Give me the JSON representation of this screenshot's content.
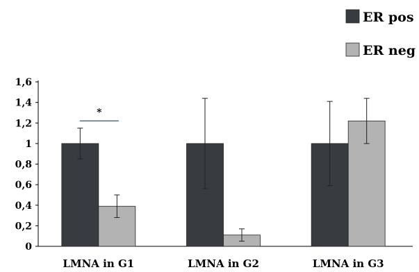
{
  "chart_data": {
    "type": "bar",
    "categories": [
      "LMNA in G1",
      "LMNA in G2",
      "LMNA in G3"
    ],
    "series": [
      {
        "name": "ER pos",
        "color": "#383c40",
        "values": [
          1.0,
          1.0,
          1.0
        ],
        "errors": [
          0.15,
          0.44,
          0.41
        ]
      },
      {
        "name": "ER neg",
        "color": "#b3b3b3",
        "values": [
          0.39,
          0.11,
          1.22
        ],
        "errors": [
          0.11,
          0.06,
          0.22
        ]
      }
    ],
    "yticks": [
      "0",
      "0,2",
      "0,4",
      "0,6",
      "0,8",
      "1",
      "1,2",
      "1,4",
      "1,6"
    ],
    "ylim": [
      0,
      1.6
    ],
    "annotations": [
      {
        "text": "*",
        "category": 0
      }
    ],
    "legend": "top-right",
    "grid": false,
    "title": "",
    "xlabel": "",
    "ylabel": ""
  }
}
